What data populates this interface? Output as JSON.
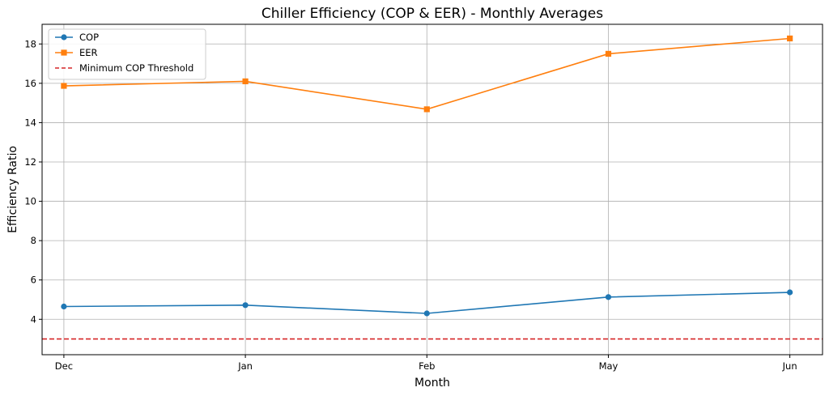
{
  "chart_data": {
    "type": "line",
    "title": "Chiller Efficiency (COP & EER) - Monthly Averages",
    "xlabel": "Month",
    "ylabel": "Efficiency Ratio",
    "categories": [
      "Dec",
      "Jan",
      "Feb",
      "May",
      "Jun"
    ],
    "x_positions": [
      0,
      1,
      2,
      3,
      4
    ],
    "xlim": [
      -0.12,
      4.18
    ],
    "ylim": [
      2.2,
      19.0
    ],
    "yticks": [
      4,
      6,
      8,
      10,
      12,
      14,
      16,
      18
    ],
    "grid": true,
    "legend_position": "top-left",
    "series": [
      {
        "name": "COP",
        "color": "#1f77b4",
        "marker": "circle",
        "values": [
          4.65,
          4.72,
          4.3,
          5.13,
          5.37
        ]
      },
      {
        "name": "EER",
        "color": "#ff7f0e",
        "marker": "square",
        "values": [
          15.87,
          16.1,
          14.68,
          17.5,
          18.28
        ]
      }
    ],
    "threshold": {
      "name": "Minimum COP Threshold",
      "value": 3.0,
      "color": "#d62728",
      "style": "dashed"
    }
  }
}
